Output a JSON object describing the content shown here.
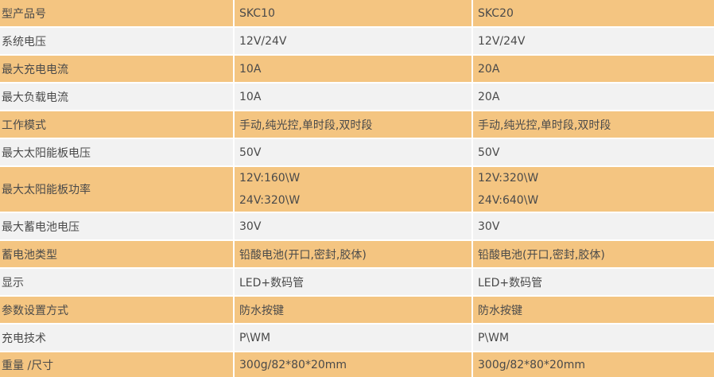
{
  "colors": {
    "row_orange": "#F4C581",
    "row_gray": "#F2F2F2",
    "divider": "#FFFFFF",
    "text": "#4A4A4A"
  },
  "table": {
    "description": "product specification comparison table",
    "rows": [
      {
        "label": "型产品号",
        "skc10": "SKC10",
        "skc20": "SKC20"
      },
      {
        "label": "系统电压",
        "skc10": "12V/24V",
        "skc20": "12V/24V"
      },
      {
        "label": "最大充电电流",
        "skc10": "10A",
        "skc20": "20A"
      },
      {
        "label": "最大负载电流",
        "skc10": "10A",
        "skc20": "20A"
      },
      {
        "label": "工作模式",
        "skc10": "手动,纯光控,单时段,双时段",
        "skc20": "手动,纯光控,单时段,双时段"
      },
      {
        "label": "最大太阳能板电压",
        "skc10": "50V",
        "skc20": "50V"
      },
      {
        "label": "最大太阳能板功率",
        "skc10_lines": [
          "12V:160\\W",
          "24V:320\\W"
        ],
        "skc20_lines": [
          "12V:320\\W",
          "24V:640\\W"
        ]
      },
      {
        "label": "最大蓄电池电压",
        "skc10": "30V",
        "skc20": "30V"
      },
      {
        "label": "蓄电池类型",
        "skc10": "铅酸电池(开口,密封,胶体)",
        "skc20": "铅酸电池(开口,密封,胶体)"
      },
      {
        "label": "显示",
        "skc10": "LED+数码管",
        "skc20": "LED+数码管"
      },
      {
        "label": "参数设置方式",
        "skc10": "防水按键",
        "skc20": "防水按键"
      },
      {
        "label": "充电技术",
        "skc10": "P\\WM",
        "skc20": "P\\WM"
      },
      {
        "label": "重量 /尺寸",
        "skc10": "300g/82*80*20mm",
        "skc20": "300g/82*80*20mm"
      }
    ]
  }
}
